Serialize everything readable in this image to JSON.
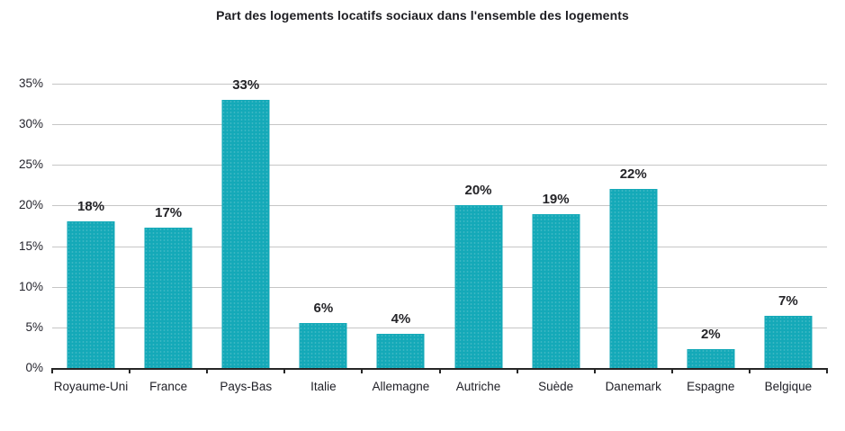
{
  "title": "Part des logements locatifs sociaux dans l'ensemble des logements",
  "colors": {
    "bar": "#14a9b8",
    "gridline": "#c6c6c6",
    "axis": "#262626",
    "title_text": "#1d1d22",
    "label_text": "#242428"
  },
  "chart_data": {
    "type": "bar",
    "title": "Part des logements locatifs sociaux dans l'ensemble des logements",
    "categories": [
      "Royaume-Uni",
      "France",
      "Pays-Bas",
      "Italie",
      "Allemagne",
      "Autriche",
      "Suède",
      "Danemark",
      "Espagne",
      "Belgique"
    ],
    "values": [
      18,
      17,
      33,
      6,
      4,
      20,
      19,
      22,
      2,
      7
    ],
    "bar_labels": [
      "18%",
      "17%",
      "33%",
      "6%",
      "4%",
      "20%",
      "19%",
      "22%",
      "2%",
      "7%"
    ],
    "precise_bar_heights": [
      18.1,
      17.3,
      33.0,
      5.5,
      4.2,
      20.0,
      18.9,
      22.0,
      2.3,
      6.4
    ],
    "xlabel": "",
    "ylabel": "",
    "ylim": [
      0,
      35
    ],
    "yticks": [
      0,
      5,
      10,
      15,
      20,
      25,
      30,
      35
    ],
    "ytick_labels": [
      "0%",
      "5%",
      "10%",
      "15%",
      "20%",
      "25%",
      "30%",
      "35%"
    ],
    "grid": "horizontal",
    "legend": false,
    "legend_position": "none"
  }
}
